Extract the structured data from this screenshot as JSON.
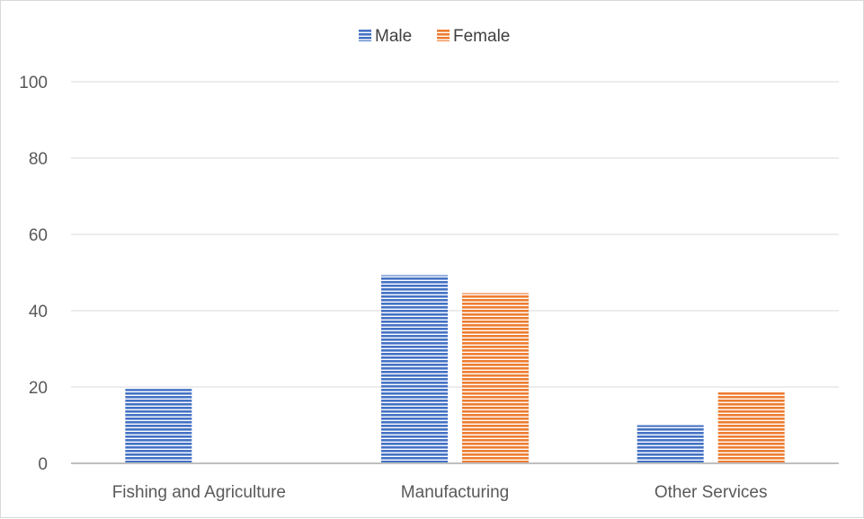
{
  "chart_data": {
    "type": "bar",
    "categories": [
      "Fishing and Agriculture",
      "Manufacturing",
      "Other Services"
    ],
    "series": [
      {
        "name": "Male",
        "values": [
          19.5,
          49.3,
          10.0
        ],
        "color": "#4472c4"
      },
      {
        "name": "Female",
        "values": [
          0,
          44.6,
          18.9
        ],
        "color": "#ed7d31"
      }
    ],
    "yticks": [
      0,
      20,
      40,
      60,
      80,
      100
    ],
    "ylim": [
      0,
      100
    ],
    "grid": true,
    "legend_position": "top-center",
    "title": "",
    "xlabel": "",
    "ylabel": ""
  }
}
